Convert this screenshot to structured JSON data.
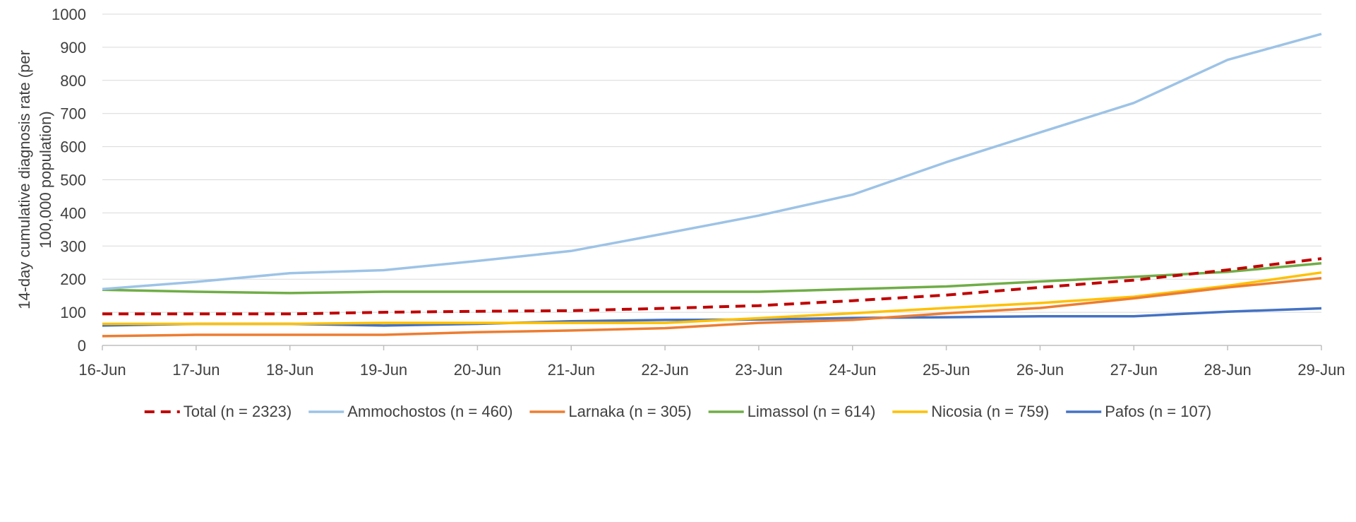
{
  "chart_data": {
    "type": "line",
    "title": "",
    "xlabel": "",
    "ylabel": "14-day cumulative diagnosis rate (per 100,000 population)",
    "ylabel_lines": [
      "14-day cumulative diagnosis rate (per",
      "100,000 population)"
    ],
    "ylim": [
      0,
      1000
    ],
    "yticks": [
      0,
      100,
      200,
      300,
      400,
      500,
      600,
      700,
      800,
      900,
      1000
    ],
    "grid": "horizontal",
    "legend_position": "bottom",
    "categories": [
      "16-Jun",
      "17-Jun",
      "18-Jun",
      "19-Jun",
      "20-Jun",
      "21-Jun",
      "22-Jun",
      "23-Jun",
      "24-Jun",
      "25-Jun",
      "26-Jun",
      "27-Jun",
      "28-Jun",
      "29-Jun"
    ],
    "series": [
      {
        "name": "Total (n = 2323)",
        "color": "#C00000",
        "dashed": true,
        "values": [
          95,
          95,
          95,
          100,
          103,
          105,
          112,
          120,
          135,
          152,
          175,
          197,
          228,
          262
        ]
      },
      {
        "name": "Ammochostos (n = 460)",
        "color": "#9DC3E6",
        "dashed": false,
        "values": [
          170,
          192,
          218,
          227,
          255,
          285,
          338,
          392,
          455,
          553,
          643,
          732,
          862,
          940
        ]
      },
      {
        "name": "Larnaka (n = 305)",
        "color": "#ED7D31",
        "dashed": false,
        "values": [
          28,
          32,
          32,
          32,
          40,
          45,
          52,
          68,
          77,
          97,
          113,
          142,
          175,
          203
        ]
      },
      {
        "name": "Limassol (n = 614)",
        "color": "#70AD47",
        "dashed": false,
        "values": [
          168,
          162,
          158,
          162,
          162,
          162,
          162,
          162,
          170,
          178,
          193,
          207,
          222,
          248
        ]
      },
      {
        "name": "Nicosia (n = 759)",
        "color": "#FFC000",
        "dashed": false,
        "values": [
          65,
          65,
          65,
          68,
          68,
          68,
          68,
          82,
          97,
          113,
          128,
          147,
          180,
          220
        ]
      },
      {
        "name": "Pafos (n = 107)",
        "color": "#4472C4",
        "dashed": false,
        "values": [
          60,
          65,
          65,
          60,
          65,
          73,
          77,
          78,
          83,
          85,
          88,
          88,
          102,
          112
        ]
      }
    ]
  }
}
